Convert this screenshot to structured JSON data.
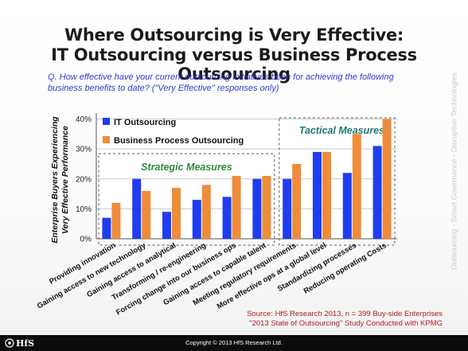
{
  "header": {
    "title_line1": "Where Outsourcing is Very Effective:",
    "title_line2": "IT Outsourcing versus Business Process Outsourcing",
    "question": "Q. How effective have your current outsourcing initiatives been for achieving the following business benefits to date? (\"Very Effective\" responses only)"
  },
  "side_banner": "Outsourcing - Smart Governance - Disruptive Technologies",
  "source": {
    "line1": "Source: HfS Research 2013, n = 399 Buy-side Enterprises",
    "line2": "\"2013 State of Outsourcing\" Study Conducted with KPMG"
  },
  "footer": {
    "copyright": "Copyright © 2013 HfS Research Ltd.",
    "logo_text": "HfS"
  },
  "colors": {
    "it": "#1f3df0",
    "bpo": "#ee8c3a",
    "group_label": "#2f8a3a",
    "tactical_label": "#1a7a78",
    "source_text": "#b21b1b",
    "question_text": "#2b3bd0"
  },
  "chart_data": {
    "type": "bar",
    "ylabel_line1": "Enterprise Buyers Experiencing",
    "ylabel_line2": "Very Effective Performance",
    "ylim": [
      0,
      42
    ],
    "yticks": [
      "0%",
      "10%",
      "20%",
      "30%",
      "40%"
    ],
    "ytick_values": [
      0,
      10,
      20,
      30,
      40
    ],
    "categories": [
      "Providing innovation",
      "Gaining access to new technology",
      "Gaining access to analytical",
      "Transforming / re-engineering",
      "Forcing change into our business ops",
      "Gaining access to capable talent",
      "Meeting regulatory requirements",
      "More effective ops at a global level",
      "Standardizing processes",
      "Reducing operating Costs"
    ],
    "series": [
      {
        "name": "IT Outsourcing",
        "values": [
          7,
          20,
          9,
          13,
          14,
          20,
          20,
          29,
          22,
          31
        ]
      },
      {
        "name": "Business Process Outsourcing",
        "values": [
          12,
          16,
          17,
          18,
          21,
          21,
          25,
          29,
          35,
          40
        ]
      }
    ],
    "groups": [
      {
        "label": "Strategic Measures",
        "start": 0,
        "end": 5
      },
      {
        "label": "Tactical Measures",
        "start": 6,
        "end": 9
      }
    ],
    "grid": true,
    "legend": "top-left"
  }
}
